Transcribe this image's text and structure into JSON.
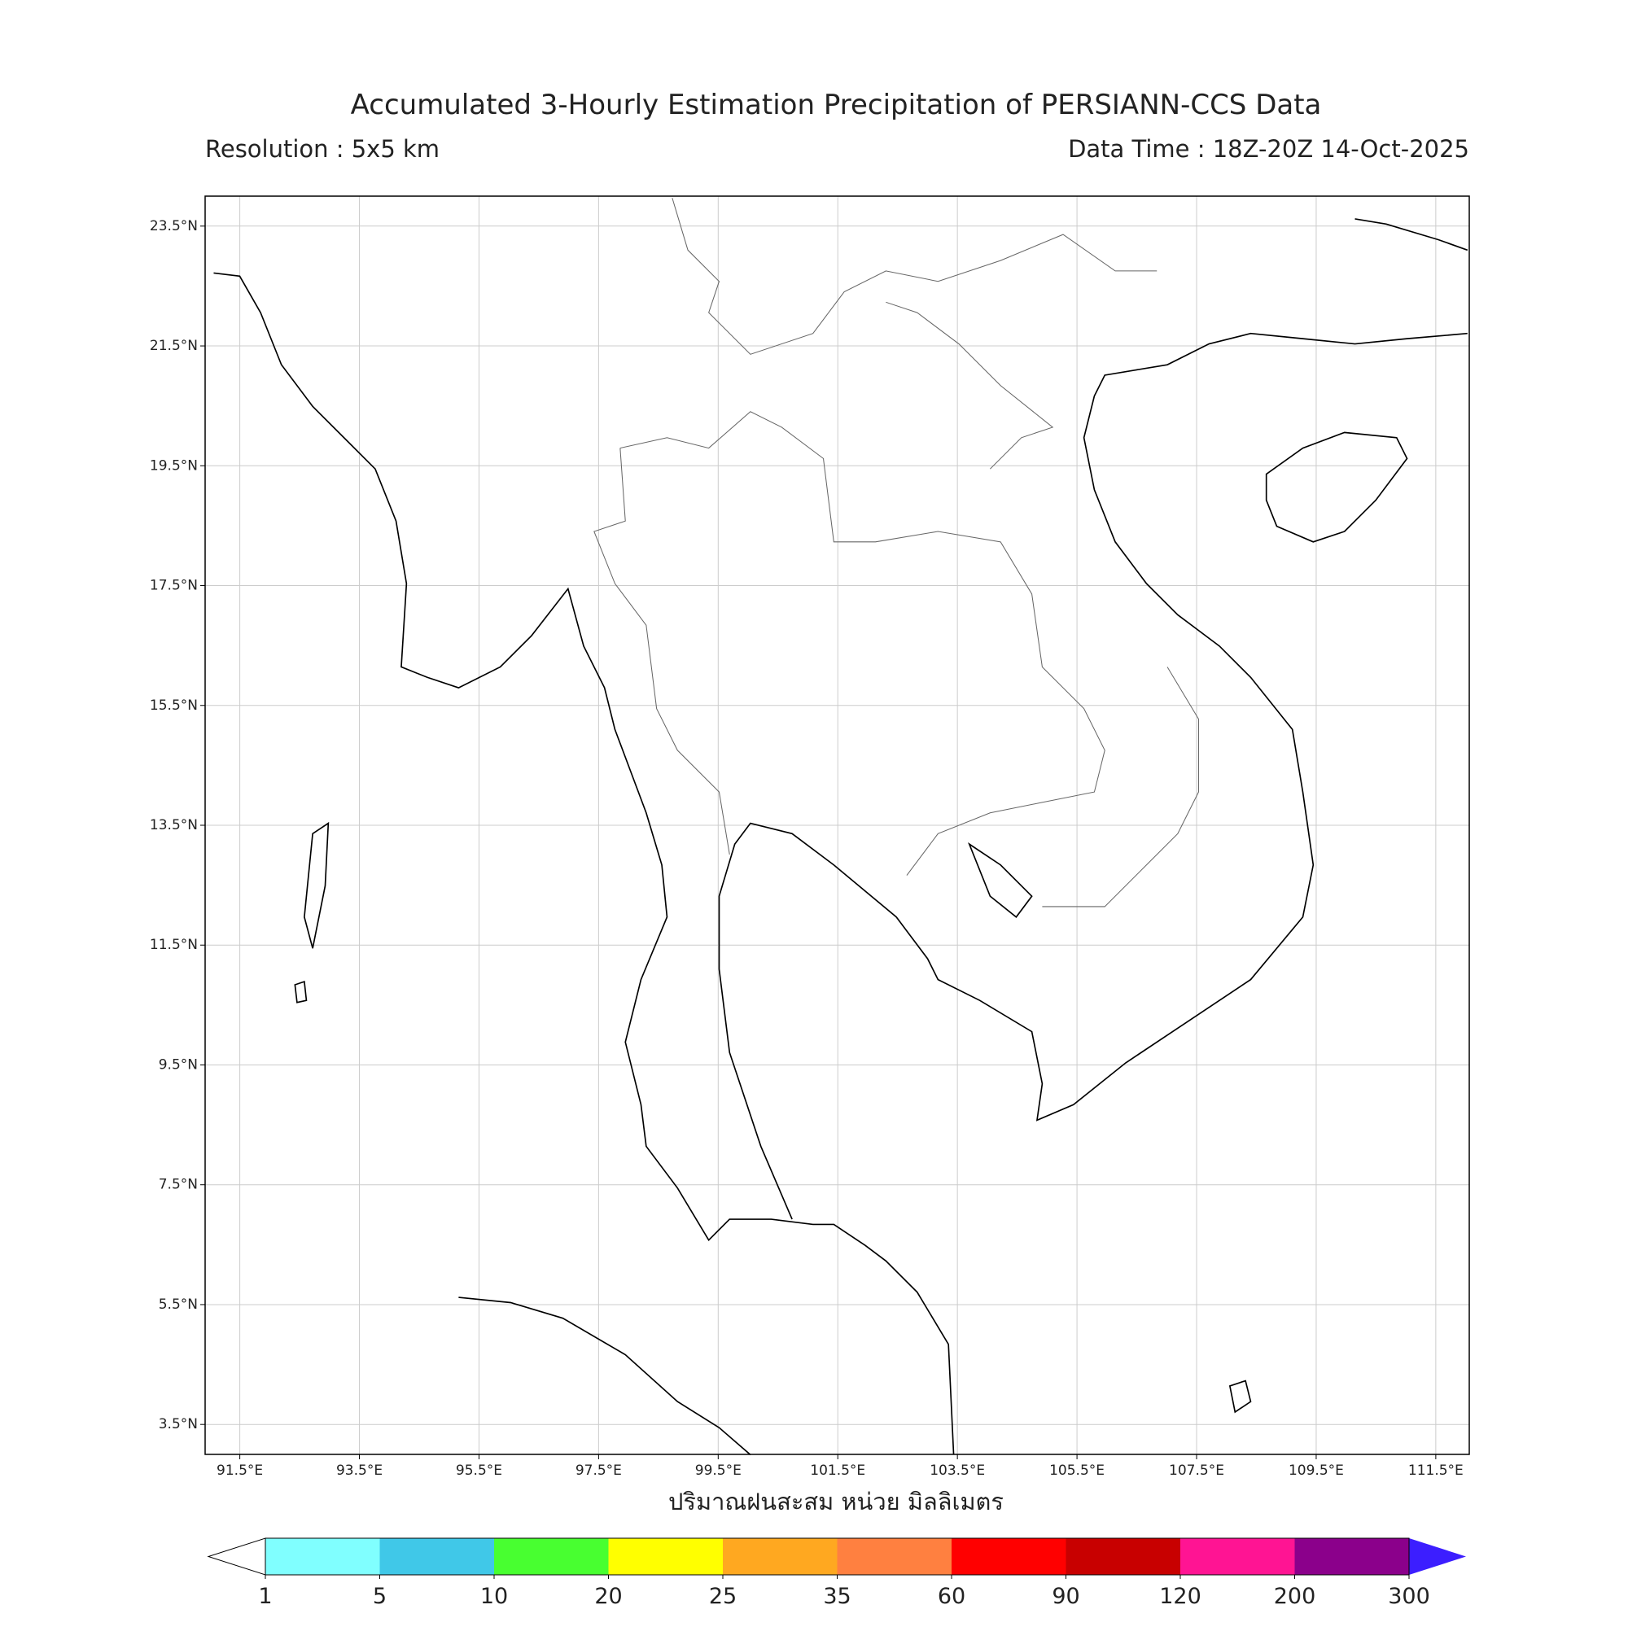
{
  "map": {
    "title": "Accumulated 3-Hourly Estimation Precipitation of PERSIANN-CCS Data",
    "resolution": "Resolution : 5x5 km",
    "data_time": "Data Time : 18Z-20Z 14-Oct-2025",
    "xlim": [
      90.92,
      112.06
    ],
    "ylim": [
      3.0,
      24.0
    ],
    "xticks": [
      {
        "value": 91.5,
        "label": "91.5°E"
      },
      {
        "value": 93.5,
        "label": "93.5°E"
      },
      {
        "value": 95.5,
        "label": "95.5°E"
      },
      {
        "value": 97.5,
        "label": "97.5°E"
      },
      {
        "value": 99.5,
        "label": "99.5°E"
      },
      {
        "value": 101.5,
        "label": "101.5°E"
      },
      {
        "value": 103.5,
        "label": "103.5°E"
      },
      {
        "value": 105.5,
        "label": "105.5°E"
      },
      {
        "value": 107.5,
        "label": "107.5°E"
      },
      {
        "value": 109.5,
        "label": "109.5°E"
      },
      {
        "value": 111.5,
        "label": "111.5°E"
      }
    ],
    "yticks": [
      {
        "value": 23.5,
        "label": "23.5°N"
      },
      {
        "value": 21.5,
        "label": "21.5°N"
      },
      {
        "value": 19.5,
        "label": "19.5°N"
      },
      {
        "value": 17.5,
        "label": "17.5°N"
      },
      {
        "value": 15.5,
        "label": "15.5°N"
      },
      {
        "value": 13.5,
        "label": "13.5°N"
      },
      {
        "value": 11.5,
        "label": "11.5°N"
      },
      {
        "value": 9.5,
        "label": "9.5°N"
      },
      {
        "value": 7.5,
        "label": "7.5°N"
      },
      {
        "value": 5.5,
        "label": "5.5°N"
      },
      {
        "value": 3.5,
        "label": "3.5°N"
      }
    ],
    "grid": true,
    "colorbar_label": "ปริมาณฝนสะสม หน่วย มิลลิเมตร",
    "levels": [
      1,
      5,
      10,
      20,
      25,
      35,
      60,
      90,
      120,
      200,
      300
    ],
    "colors": [
      "#80ffff",
      "#40c8e8",
      "#48ff30",
      "#ffff00",
      "#ffa820",
      "#ff8040",
      "#ff0000",
      "#c80000",
      "#ff1493",
      "#8b008b"
    ],
    "under_color": "#ffffff",
    "over_color": "#3c1eff"
  }
}
